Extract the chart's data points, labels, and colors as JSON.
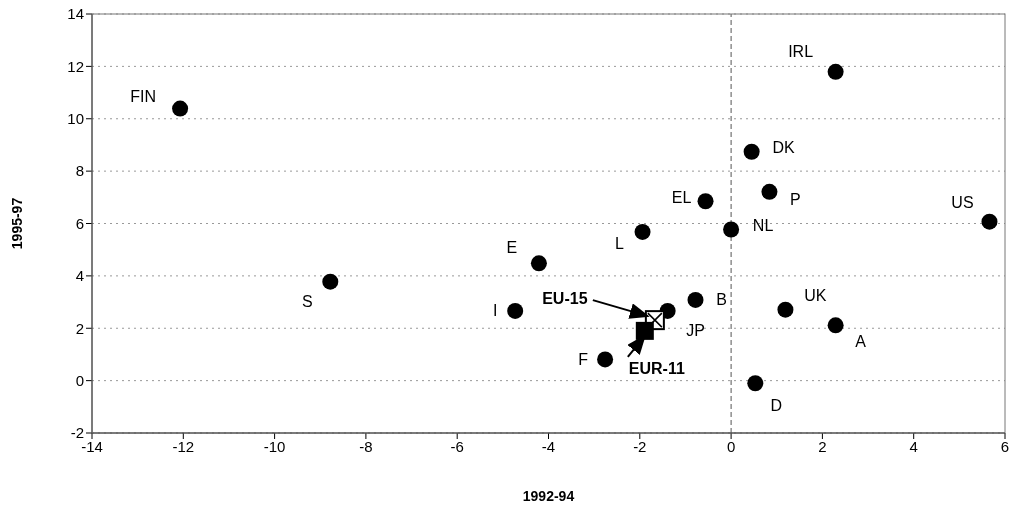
{
  "chart_data": {
    "type": "scatter",
    "xlabel": "1992-94",
    "ylabel": "1995-97",
    "xlim": [
      -14,
      6
    ],
    "xticks": [
      -14,
      -12,
      -10,
      -8,
      -6,
      -4,
      -2,
      0,
      2,
      4,
      6
    ],
    "ylim": [
      -2,
      14
    ],
    "yticks": [
      -2,
      0,
      2,
      4,
      6,
      8,
      10,
      12,
      14
    ],
    "grid": "y",
    "legend": false,
    "ref_lines": [
      {
        "axis": "x",
        "value": 0,
        "line_style": "dashed",
        "color": "#555555"
      }
    ],
    "series": [
      {
        "color": "#000000",
        "marker": "circle",
        "x": [
          -12.07,
          -8.78,
          -4.21,
          -4.73,
          -1.94,
          -0.56,
          0.0,
          0.45,
          0.84,
          2.29,
          5.66,
          1.19,
          2.29,
          -0.78,
          -1.39,
          -2.76,
          0.53
        ],
        "values": [
          10.39,
          3.78,
          4.48,
          2.66,
          5.68,
          6.85,
          5.77,
          8.74,
          7.21,
          11.79,
          6.07,
          2.71,
          2.11,
          3.08,
          2.66,
          0.81,
          -0.1
        ]
      },
      {
        "color": "#ffffff",
        "marker": "square",
        "x": [
          -1.67
        ],
        "values": [
          2.31
        ]
      },
      {
        "color": "#000000",
        "marker": "square",
        "x": [
          -1.89
        ],
        "values": [
          1.9
        ]
      }
    ],
    "annotations": [
      {
        "text": "FIN",
        "x": -12.07,
        "y": 10.39
      },
      {
        "text": "S",
        "x": -8.78,
        "y": 3.78
      },
      {
        "text": "E",
        "x": -4.21,
        "y": 4.48
      },
      {
        "text": "I",
        "x": -4.73,
        "y": 2.66
      },
      {
        "text": "L",
        "x": -1.94,
        "y": 5.68
      },
      {
        "text": "EL",
        "x": -0.56,
        "y": 6.85
      },
      {
        "text": "NL",
        "x": 0.0,
        "y": 5.77
      },
      {
        "text": "DK",
        "x": 0.45,
        "y": 8.74
      },
      {
        "text": "P",
        "x": 0.84,
        "y": 7.21
      },
      {
        "text": "IRL",
        "x": 2.29,
        "y": 11.79
      },
      {
        "text": "US",
        "x": 5.66,
        "y": 6.07
      },
      {
        "text": "UK",
        "x": 1.19,
        "y": 2.71
      },
      {
        "text": "A",
        "x": 2.29,
        "y": 2.11
      },
      {
        "text": "B",
        "x": -0.78,
        "y": 3.08
      },
      {
        "text": "JP",
        "x": -1.39,
        "y": 2.66
      },
      {
        "text": "F",
        "x": -2.76,
        "y": 0.81
      },
      {
        "text": "D",
        "x": 0.53,
        "y": -0.1
      },
      {
        "text": "EU-15",
        "x": -1.67,
        "y": 2.31
      },
      {
        "text": "EUR-11",
        "x": -1.89,
        "y": 1.9
      }
    ]
  }
}
